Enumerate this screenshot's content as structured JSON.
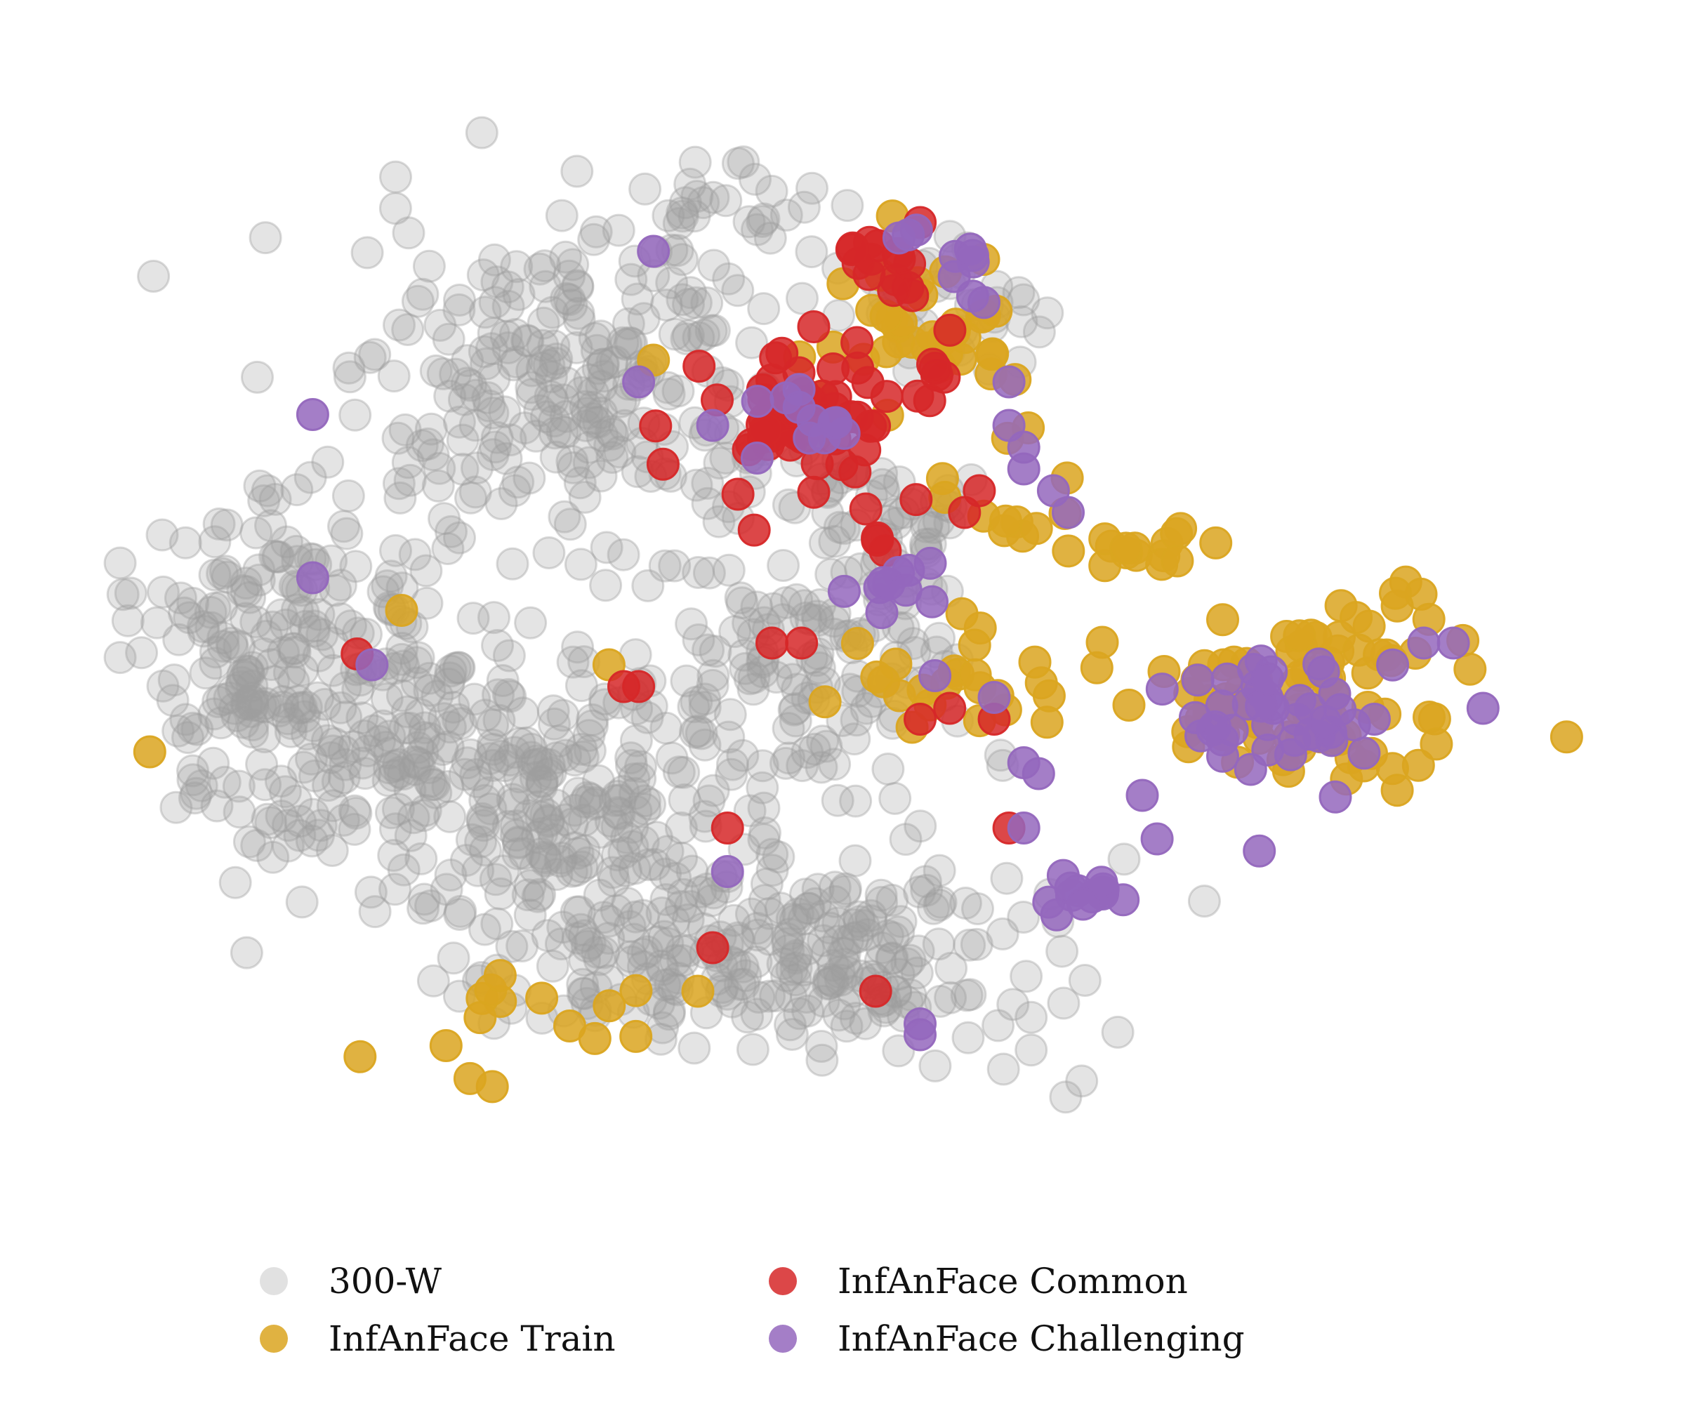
{
  "chart_data": {
    "type": "scatter",
    "title": "",
    "xlabel": "",
    "ylabel": "",
    "axes_visible": false,
    "grid": false,
    "legend_placement": "bottom-center",
    "xlim": [
      0,
      100
    ],
    "ylim": [
      0,
      100
    ],
    "series": [
      {
        "name": "300-W",
        "color": "#9e9e9e",
        "opacity": 0.28,
        "clusters": [
          {
            "center": [
              32,
              70
            ],
            "spread": [
              9,
              10
            ],
            "count": 260
          },
          {
            "center": [
              12,
              46
            ],
            "spread": [
              6,
              10
            ],
            "count": 230
          },
          {
            "center": [
              28,
              34
            ],
            "spread": [
              10,
              9
            ],
            "count": 300
          },
          {
            "center": [
              47,
              20
            ],
            "spread": [
              11,
              6
            ],
            "count": 260
          },
          {
            "center": [
              47,
              45
            ],
            "spread": [
              7,
              8
            ],
            "count": 110
          },
          {
            "center": [
              41,
              88
            ],
            "spread": [
              4,
              4
            ],
            "count": 30
          },
          {
            "center": [
              52,
              58
            ],
            "spread": [
              4,
              6
            ],
            "count": 60
          },
          {
            "center": [
              57,
              80
            ],
            "spread": [
              4,
              4
            ],
            "count": 40
          }
        ]
      },
      {
        "name": "InfAnFace Train",
        "color": "#daa520",
        "opacity": 0.85,
        "clusters": [
          {
            "center": [
              80,
              43
            ],
            "spread": [
              7,
              5
            ],
            "count": 80
          },
          {
            "center": [
              70,
              57
            ],
            "spread": [
              3,
              2
            ],
            "count": 15
          },
          {
            "center": [
              56,
              76
            ],
            "spread": [
              5,
              6
            ],
            "count": 40
          },
          {
            "center": [
              57,
              44
            ],
            "spread": [
              5,
              4
            ],
            "count": 25
          },
          {
            "center": [
              27,
              13
            ],
            "spread": [
              6,
              4
            ],
            "count": 14
          },
          {
            "center": [
              89,
              50
            ],
            "spread": [
              3,
              3
            ],
            "count": 8
          },
          {
            "center": [
              62,
              60
            ],
            "spread": [
              4,
              3
            ],
            "count": 10
          }
        ],
        "points": [
          [
            3,
            38
          ],
          [
            20,
            51
          ],
          [
            23,
            11
          ],
          [
            40,
            16
          ],
          [
            34,
            46
          ],
          [
            37,
            74
          ]
        ]
      },
      {
        "name": "InfAnFace Common",
        "color": "#d62728",
        "opacity": 0.85,
        "clusters": [
          {
            "center": [
              47,
              69
            ],
            "spread": [
              4,
              5
            ],
            "count": 55
          },
          {
            "center": [
              52,
              83
            ],
            "spread": [
              2,
              3
            ],
            "count": 15
          },
          {
            "center": [
              56,
              72
            ],
            "spread": [
              2,
              2
            ],
            "count": 6
          },
          {
            "center": [
              53,
              58
            ],
            "spread": [
              2,
              2
            ],
            "count": 5
          }
        ],
        "points": [
          [
            17,
            47
          ],
          [
            35,
            44
          ],
          [
            36,
            44
          ],
          [
            45,
            48
          ],
          [
            47,
            48
          ],
          [
            42,
            31
          ],
          [
            41,
            20
          ],
          [
            52,
            16
          ],
          [
            57,
            42
          ],
          [
            55,
            41
          ],
          [
            60,
            41
          ],
          [
            61,
            31
          ],
          [
            59,
            62
          ],
          [
            58,
            60
          ]
        ]
      },
      {
        "name": "InfAnFace Challenging",
        "color": "#9467bd",
        "opacity": 0.85,
        "clusters": [
          {
            "center": [
              79,
              42
            ],
            "spread": [
              5,
              4
            ],
            "count": 45
          },
          {
            "center": [
              66,
              25
            ],
            "spread": [
              1.5,
              1.2
            ],
            "count": 12
          },
          {
            "center": [
              53,
              54
            ],
            "spread": [
              2,
              2
            ],
            "count": 10
          },
          {
            "center": [
              56,
              83
            ],
            "spread": [
              3,
              3
            ],
            "count": 10
          },
          {
            "center": [
              49,
              66
            ],
            "spread": [
              4,
              4
            ],
            "count": 10
          }
        ],
        "points": [
          [
            14,
            69
          ],
          [
            14,
            54
          ],
          [
            18,
            46
          ],
          [
            37,
            84
          ],
          [
            36,
            72
          ],
          [
            41,
            68
          ],
          [
            44,
            65
          ],
          [
            62,
            64
          ],
          [
            61,
            68
          ],
          [
            61,
            72
          ],
          [
            62,
            66
          ],
          [
            56,
            45
          ],
          [
            60,
            43
          ],
          [
            62,
            37
          ],
          [
            63,
            36
          ],
          [
            62,
            31
          ],
          [
            71,
            30
          ],
          [
            70,
            34
          ],
          [
            89,
            48
          ],
          [
            91,
            48
          ],
          [
            93,
            42
          ],
          [
            42,
            27
          ],
          [
            55,
            13
          ],
          [
            55,
            12
          ],
          [
            65,
            60
          ],
          [
            64,
            62
          ],
          [
            66,
            24
          ]
        ]
      }
    ]
  },
  "legend": {
    "items": [
      {
        "label": "300-W",
        "color": "#c8c8c8"
      },
      {
        "label": "InfAnFace Train",
        "color": "#daa520"
      },
      {
        "label": "InfAnFace Common",
        "color": "#d62728"
      },
      {
        "label": "InfAnFace Challenging",
        "color": "#9467bd"
      }
    ]
  }
}
